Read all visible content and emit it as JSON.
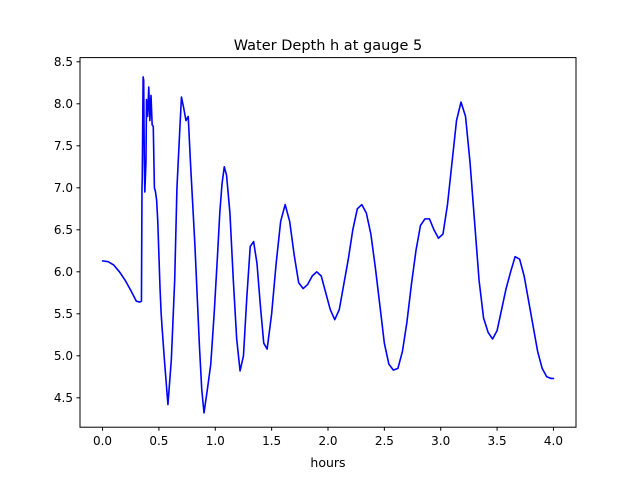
{
  "chart_data": {
    "type": "line",
    "title": "Water Depth h at gauge 5",
    "xlabel": "hours",
    "ylabel": "",
    "xlim": [
      -0.2,
      4.2
    ],
    "ylim": [
      4.15,
      8.55
    ],
    "xticks": [
      0.0,
      0.5,
      1.0,
      1.5,
      2.0,
      2.5,
      3.0,
      3.5,
      4.0
    ],
    "xtick_labels": [
      "0.0",
      "0.5",
      "1.0",
      "1.5",
      "2.0",
      "2.5",
      "3.0",
      "3.5",
      "4.0"
    ],
    "yticks": [
      4.5,
      5.0,
      5.5,
      6.0,
      6.5,
      7.0,
      7.5,
      8.0,
      8.5
    ],
    "ytick_labels": [
      "4.5",
      "5.0",
      "5.5",
      "6.0",
      "6.5",
      "7.0",
      "7.5",
      "8.0",
      "8.5"
    ],
    "grid": false,
    "legend": "none",
    "series": [
      {
        "color": "#0000ff",
        "x": [
          0.0,
          0.05,
          0.1,
          0.15,
          0.2,
          0.25,
          0.3,
          0.33,
          0.345,
          0.35,
          0.352,
          0.36,
          0.365,
          0.37,
          0.375,
          0.385,
          0.39,
          0.4,
          0.41,
          0.42,
          0.43,
          0.44,
          0.45,
          0.46,
          0.47,
          0.48,
          0.49,
          0.5,
          0.51,
          0.52,
          0.53,
          0.55,
          0.58,
          0.61,
          0.64,
          0.66,
          0.68,
          0.7,
          0.72,
          0.74,
          0.76,
          0.78,
          0.8,
          0.82,
          0.84,
          0.86,
          0.88,
          0.9,
          0.93,
          0.96,
          0.99,
          1.02,
          1.04,
          1.06,
          1.08,
          1.1,
          1.13,
          1.16,
          1.19,
          1.22,
          1.25,
          1.28,
          1.31,
          1.34,
          1.37,
          1.4,
          1.43,
          1.46,
          1.5,
          1.54,
          1.58,
          1.62,
          1.66,
          1.7,
          1.74,
          1.78,
          1.82,
          1.86,
          1.9,
          1.94,
          1.98,
          2.02,
          2.06,
          2.1,
          2.14,
          2.18,
          2.22,
          2.26,
          2.3,
          2.34,
          2.38,
          2.42,
          2.46,
          2.5,
          2.54,
          2.58,
          2.62,
          2.66,
          2.7,
          2.74,
          2.78,
          2.82,
          2.86,
          2.9,
          2.94,
          2.98,
          3.02,
          3.06,
          3.1,
          3.14,
          3.18,
          3.22,
          3.26,
          3.3,
          3.34,
          3.38,
          3.42,
          3.46,
          3.5,
          3.54,
          3.58,
          3.62,
          3.66,
          3.7,
          3.74,
          3.78,
          3.82,
          3.86,
          3.9,
          3.94,
          3.98,
          4.0
        ],
        "y": [
          6.13,
          6.12,
          6.08,
          6.0,
          5.9,
          5.78,
          5.65,
          5.64,
          5.65,
          7.0,
          7.1,
          8.32,
          8.28,
          7.4,
          6.95,
          7.3,
          8.05,
          7.85,
          8.2,
          7.8,
          8.1,
          7.75,
          7.73,
          7.0,
          6.95,
          6.85,
          6.6,
          6.2,
          5.8,
          5.5,
          5.3,
          4.93,
          4.42,
          4.95,
          5.9,
          7.0,
          7.55,
          8.08,
          7.95,
          7.8,
          7.85,
          7.3,
          6.8,
          6.3,
          5.7,
          5.1,
          4.6,
          4.32,
          4.6,
          4.9,
          5.5,
          6.2,
          6.7,
          7.05,
          7.25,
          7.15,
          6.7,
          5.9,
          5.2,
          4.82,
          5.0,
          5.7,
          6.3,
          6.36,
          6.1,
          5.6,
          5.15,
          5.08,
          5.5,
          6.1,
          6.6,
          6.8,
          6.6,
          6.2,
          5.87,
          5.8,
          5.85,
          5.95,
          6.0,
          5.95,
          5.75,
          5.55,
          5.43,
          5.55,
          5.85,
          6.15,
          6.5,
          6.75,
          6.8,
          6.7,
          6.45,
          6.05,
          5.6,
          5.15,
          4.9,
          4.83,
          4.85,
          5.05,
          5.4,
          5.85,
          6.25,
          6.55,
          6.63,
          6.63,
          6.5,
          6.4,
          6.45,
          6.8,
          7.3,
          7.8,
          8.02,
          7.85,
          7.3,
          6.6,
          5.9,
          5.45,
          5.28,
          5.2,
          5.3,
          5.55,
          5.8,
          6.0,
          6.18,
          6.15,
          5.95,
          5.65,
          5.35,
          5.05,
          4.85,
          4.75,
          4.73,
          4.73
        ]
      }
    ]
  }
}
